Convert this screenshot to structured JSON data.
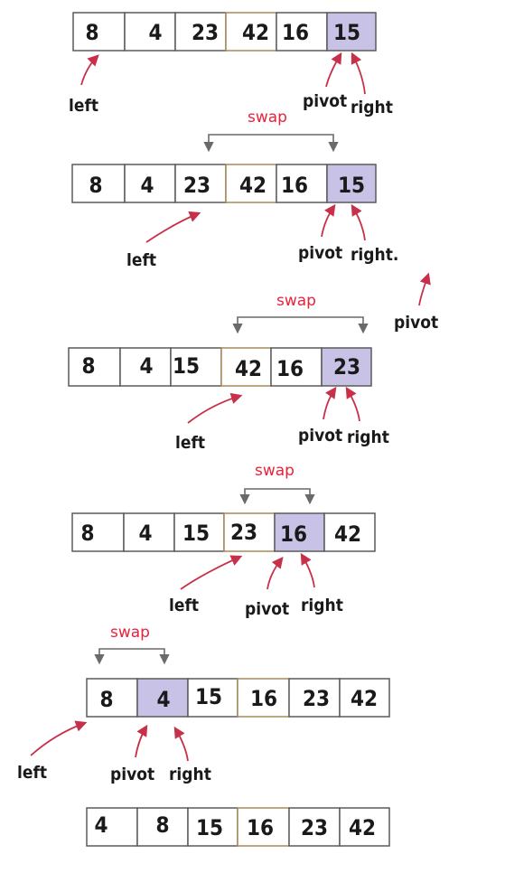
{
  "colors": {
    "cell_border": "#5a5a5a",
    "cell_fill": "#ffffff",
    "pivot_fill": "#c8c3e6",
    "divider_accent": "#a58a5a",
    "arrow_red": "#c8304a",
    "swap_text": "#e8223a",
    "bracket": "#6a6a6a"
  },
  "rows": [
    {
      "values": [
        "8",
        "4",
        "23",
        "42",
        "16",
        "15"
      ],
      "highlight": 5,
      "labels": {
        "left": "left",
        "pivot": "pivot",
        "right": "right"
      }
    },
    {
      "values": [
        "8",
        "4",
        "23",
        "42",
        "16",
        "15"
      ],
      "highlight": 5,
      "swap": "swap",
      "labels": {
        "left": "left",
        "pivot": "pivot",
        "right": "right."
      },
      "stray_label": "pivot"
    },
    {
      "values": [
        "8",
        "4",
        "15",
        "42",
        "16",
        "23"
      ],
      "highlight": 5,
      "swap": "swap",
      "labels": {
        "left": "left",
        "pivot": "pivot",
        "right": "right"
      }
    },
    {
      "values": [
        "8",
        "4",
        "15",
        "23",
        "16",
        "42"
      ],
      "highlight": 4,
      "swap": "swap",
      "labels": {
        "left": "left",
        "pivot": "pivot",
        "right": "right"
      }
    },
    {
      "values": [
        "8",
        "4",
        "15",
        "16",
        "23",
        "42"
      ],
      "highlight": 1,
      "swap": "swap",
      "labels": {
        "left": "left",
        "pivot": "pivot",
        "right": "right"
      }
    },
    {
      "values": [
        "4",
        "8",
        "15",
        "16",
        "23",
        "42"
      ],
      "highlight": -1
    }
  ]
}
